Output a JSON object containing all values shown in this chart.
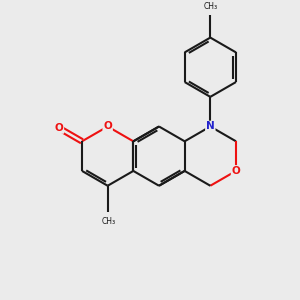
{
  "background_color": "#ebebeb",
  "bond_color": "#1a1a1a",
  "oxygen_color": "#ee1111",
  "nitrogen_color": "#2222cc",
  "line_width": 1.5,
  "figsize": [
    3.0,
    3.0
  ],
  "dpi": 100,
  "xlim": [
    0,
    10
  ],
  "ylim": [
    0,
    10
  ]
}
